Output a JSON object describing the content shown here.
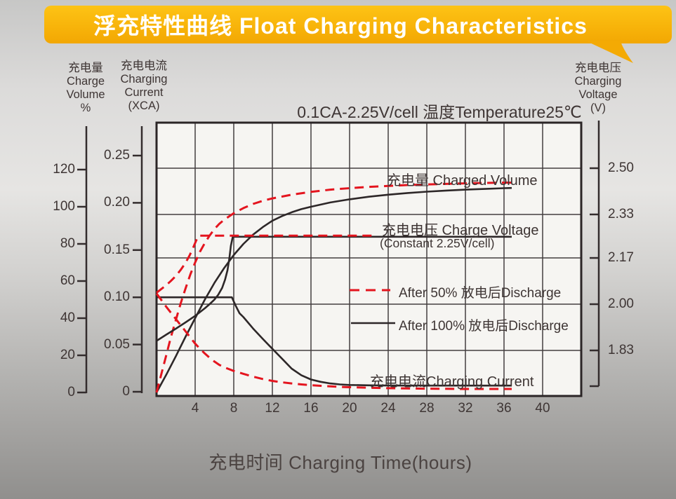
{
  "banner": {
    "title": "浮充特性曲线 Float Charging Characteristics",
    "color": "#f7b409"
  },
  "axis_headers": {
    "volume": [
      "充电量",
      "Charge",
      "Volume",
      "%"
    ],
    "current": [
      "充电电流",
      "Charging",
      "Current",
      "(XCA)"
    ],
    "voltage": [
      "充电电压",
      "Charging",
      "Voltage",
      "(V)"
    ]
  },
  "chart_data": {
    "type": "line",
    "title": "0.1CA-2.25V/cell  温度Temperature25℃",
    "xlabel": "充电时间 Charging Time(hours)",
    "grid": true,
    "x_axis": {
      "tick_labels": [
        "4",
        "8",
        "12",
        "16",
        "20",
        "24",
        "28",
        "32",
        "36",
        "40"
      ],
      "tick_values": [
        4,
        8,
        12,
        16,
        20,
        24,
        28,
        32,
        36,
        40
      ],
      "range": [
        0,
        44
      ]
    },
    "y_axes": {
      "volume": {
        "label": "充电量 Charge Volume %",
        "tick_labels": [
          "120",
          "100",
          "80",
          "60",
          "40",
          "20",
          "0"
        ],
        "tick_values": [
          120,
          100,
          80,
          60,
          40,
          20,
          0
        ],
        "range": [
          0,
          145
        ]
      },
      "current": {
        "label": "充电电流 Charging Current (XCA)",
        "tick_labels": [
          "0.25",
          "0.20",
          "0.15",
          "0.10",
          "0.05",
          "0"
        ],
        "tick_values": [
          0.25,
          0.2,
          0.15,
          0.1,
          0.05,
          0
        ],
        "range": [
          0,
          0.285
        ]
      },
      "voltage": {
        "label": "充电电压 Charging Voltage (V)",
        "tick_labels": [
          "2.50",
          "2.33",
          "2.17",
          "2.00",
          "1.83"
        ],
        "tick_values": [
          2.5,
          2.33,
          2.17,
          2.0,
          1.83
        ],
        "range": [
          1.68,
          2.66
        ]
      }
    },
    "colors": {
      "after_50_discharge": "#e4151f",
      "after_100_discharge": "#2d2728"
    },
    "series": [
      {
        "name": "charged-volume-after-100-discharge",
        "axis": "volume",
        "style": "solid",
        "color": "#2d2728",
        "points": [
          [
            0,
            0
          ],
          [
            1,
            9.5
          ],
          [
            2,
            19.5
          ],
          [
            3,
            30
          ],
          [
            4,
            40
          ],
          [
            5,
            50
          ],
          [
            6,
            59
          ],
          [
            7,
            67
          ],
          [
            8,
            74
          ],
          [
            9,
            80
          ],
          [
            10,
            85
          ],
          [
            11,
            89
          ],
          [
            12,
            92.5
          ],
          [
            13,
            95
          ],
          [
            14,
            97
          ],
          [
            15,
            98.7
          ],
          [
            16,
            100
          ],
          [
            18,
            102.3
          ],
          [
            20,
            104
          ],
          [
            22,
            105.4
          ],
          [
            24,
            106.5
          ],
          [
            26,
            107.4
          ],
          [
            28,
            108.1
          ],
          [
            30,
            108.7
          ],
          [
            32,
            109.2
          ],
          [
            34,
            109.6
          ],
          [
            36,
            110
          ],
          [
            36.8,
            110.1
          ]
        ]
      },
      {
        "name": "charged-volume-after-50-discharge",
        "axis": "volume",
        "style": "dashed",
        "color": "#e4151f",
        "points": [
          [
            0,
            0
          ],
          [
            0.5,
            10
          ],
          [
            1,
            20
          ],
          [
            1.5,
            30
          ],
          [
            2,
            39
          ],
          [
            2.5,
            48
          ],
          [
            3,
            56
          ],
          [
            3.5,
            63.5
          ],
          [
            4,
            70
          ],
          [
            4.5,
            75.8
          ],
          [
            5,
            80.5
          ],
          [
            5.5,
            84.5
          ],
          [
            6,
            88
          ],
          [
            6.5,
            90.8
          ],
          [
            7,
            93
          ],
          [
            8,
            96.5
          ],
          [
            9,
            99.3
          ],
          [
            10,
            101.5
          ],
          [
            11,
            103.2
          ],
          [
            12,
            104.5
          ],
          [
            14,
            106.5
          ],
          [
            16,
            108
          ],
          [
            18,
            109.2
          ],
          [
            20,
            110
          ],
          [
            22,
            110.7
          ],
          [
            24,
            111.2
          ],
          [
            26,
            111.7
          ],
          [
            28,
            112
          ],
          [
            30,
            112.3
          ],
          [
            32,
            112.6
          ],
          [
            34,
            112.8
          ],
          [
            36,
            113
          ],
          [
            36.8,
            113
          ]
        ]
      },
      {
        "name": "charge-voltage-after-100-discharge",
        "axis": "voltage",
        "style": "solid",
        "color": "#2d2728",
        "points": [
          [
            0,
            1.865
          ],
          [
            1,
            1.888
          ],
          [
            2,
            1.91
          ],
          [
            3,
            1.933
          ],
          [
            4,
            1.957
          ],
          [
            5,
            1.985
          ],
          [
            5.5,
            2.0
          ],
          [
            6,
            2.017
          ],
          [
            6.4,
            2.035
          ],
          [
            6.8,
            2.06
          ],
          [
            7.1,
            2.09
          ],
          [
            7.35,
            2.125
          ],
          [
            7.55,
            2.17
          ],
          [
            7.7,
            2.215
          ],
          [
            7.9,
            2.248
          ],
          [
            36.8,
            2.248
          ]
        ]
      },
      {
        "name": "charge-voltage-after-50-discharge",
        "axis": "voltage",
        "style": "dashed",
        "color": "#e4151f",
        "points": [
          [
            0,
            2.042
          ],
          [
            0.5,
            2.056
          ],
          [
            1,
            2.07
          ],
          [
            1.5,
            2.086
          ],
          [
            2,
            2.104
          ],
          [
            2.5,
            2.126
          ],
          [
            3,
            2.152
          ],
          [
            3.4,
            2.178
          ],
          [
            3.7,
            2.2
          ],
          [
            4,
            2.225
          ],
          [
            4.2,
            2.242
          ],
          [
            4.4,
            2.252
          ],
          [
            22.8,
            2.252
          ]
        ]
      },
      {
        "name": "charging-current-after-100-discharge",
        "axis": "current",
        "style": "solid",
        "color": "#2d2728",
        "points": [
          [
            0,
            0.1
          ],
          [
            7.8,
            0.1
          ],
          [
            8.2,
            0.091
          ],
          [
            8.6,
            0.083
          ],
          [
            9,
            0.079
          ],
          [
            10,
            0.067
          ],
          [
            11,
            0.056
          ],
          [
            12,
            0.0455
          ],
          [
            13,
            0.035
          ],
          [
            14,
            0.0245
          ],
          [
            15,
            0.0175
          ],
          [
            16,
            0.013
          ],
          [
            17,
            0.0105
          ],
          [
            18,
            0.0088
          ],
          [
            19,
            0.0078
          ],
          [
            20,
            0.0072
          ],
          [
            22,
            0.0068
          ],
          [
            24,
            0.0066
          ],
          [
            28,
            0.0065
          ],
          [
            32,
            0.0065
          ],
          [
            36.8,
            0.0065
          ]
        ]
      },
      {
        "name": "charging-current-after-50-discharge",
        "axis": "current",
        "style": "dashed",
        "color": "#e4151f",
        "points": [
          [
            0,
            0.104
          ],
          [
            0.5,
            0.097
          ],
          [
            1,
            0.09
          ],
          [
            1.5,
            0.0835
          ],
          [
            2,
            0.077
          ],
          [
            2.5,
            0.0705
          ],
          [
            3,
            0.064
          ],
          [
            3.5,
            0.0575
          ],
          [
            4,
            0.051
          ],
          [
            4.5,
            0.0455
          ],
          [
            5,
            0.0405
          ],
          [
            5.5,
            0.036
          ],
          [
            6,
            0.032
          ],
          [
            6.5,
            0.0285
          ],
          [
            7,
            0.026
          ],
          [
            8,
            0.022
          ],
          [
            9,
            0.019
          ],
          [
            10,
            0.016
          ],
          [
            11,
            0.0135
          ],
          [
            12,
            0.0115
          ],
          [
            13,
            0.01
          ],
          [
            14,
            0.0088
          ],
          [
            15,
            0.0078
          ],
          [
            16,
            0.007
          ],
          [
            17,
            0.0063
          ],
          [
            18,
            0.0057
          ],
          [
            19,
            0.0052
          ],
          [
            20,
            0.0048
          ],
          [
            22,
            0.0042
          ],
          [
            24,
            0.0038
          ],
          [
            26,
            0.0035
          ],
          [
            28,
            0.0033
          ],
          [
            30,
            0.0031
          ],
          [
            32,
            0.003
          ],
          [
            36.8,
            0.003
          ]
        ]
      }
    ],
    "legend": {
      "after_50": {
        "label": "After 50% 放电后Discharge",
        "style": "dashed",
        "color": "#e4151f"
      },
      "after_100": {
        "label": "After 100% 放电后Discharge",
        "style": "solid",
        "color": "#2d2728"
      }
    },
    "annotations": {
      "charged_volume": "充电量 Charged Volume",
      "charge_voltage": "充电电压 Charge Voltage",
      "charge_voltage_sub": "(Constant 2.25V/cell)",
      "charging_current": "充电电流Charging Current"
    }
  }
}
